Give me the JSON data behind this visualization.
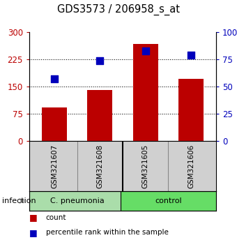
{
  "title": "GDS3573 / 206958_s_at",
  "samples": [
    "GSM321607",
    "GSM321608",
    "GSM321605",
    "GSM321606"
  ],
  "counts": [
    93,
    140,
    268,
    172
  ],
  "percentiles": [
    57,
    74,
    83,
    79
  ],
  "bar_color": "#bb0000",
  "dot_color": "#0000bb",
  "left_ylim": [
    0,
    300
  ],
  "right_ylim": [
    0,
    100
  ],
  "left_yticks": [
    0,
    75,
    150,
    225,
    300
  ],
  "right_yticks": [
    0,
    25,
    50,
    75,
    100
  ],
  "left_yticklabels": [
    "0",
    "75",
    "150",
    "225",
    "300"
  ],
  "right_yticklabels": [
    "0",
    "25",
    "50",
    "75",
    "100%"
  ],
  "group1_label": "C. pneumonia",
  "group2_label": "control",
  "group1_color": "#aaddaa",
  "group2_color": "#66dd66",
  "group_label": "infection",
  "bg_color": "#d0d0d0",
  "plot_bg": "#ffffff",
  "legend_count_label": "count",
  "legend_pct_label": "percentile rank within the sample",
  "bar_width": 0.55,
  "dot_size": 45,
  "grid_yticks": [
    75,
    150,
    225
  ]
}
